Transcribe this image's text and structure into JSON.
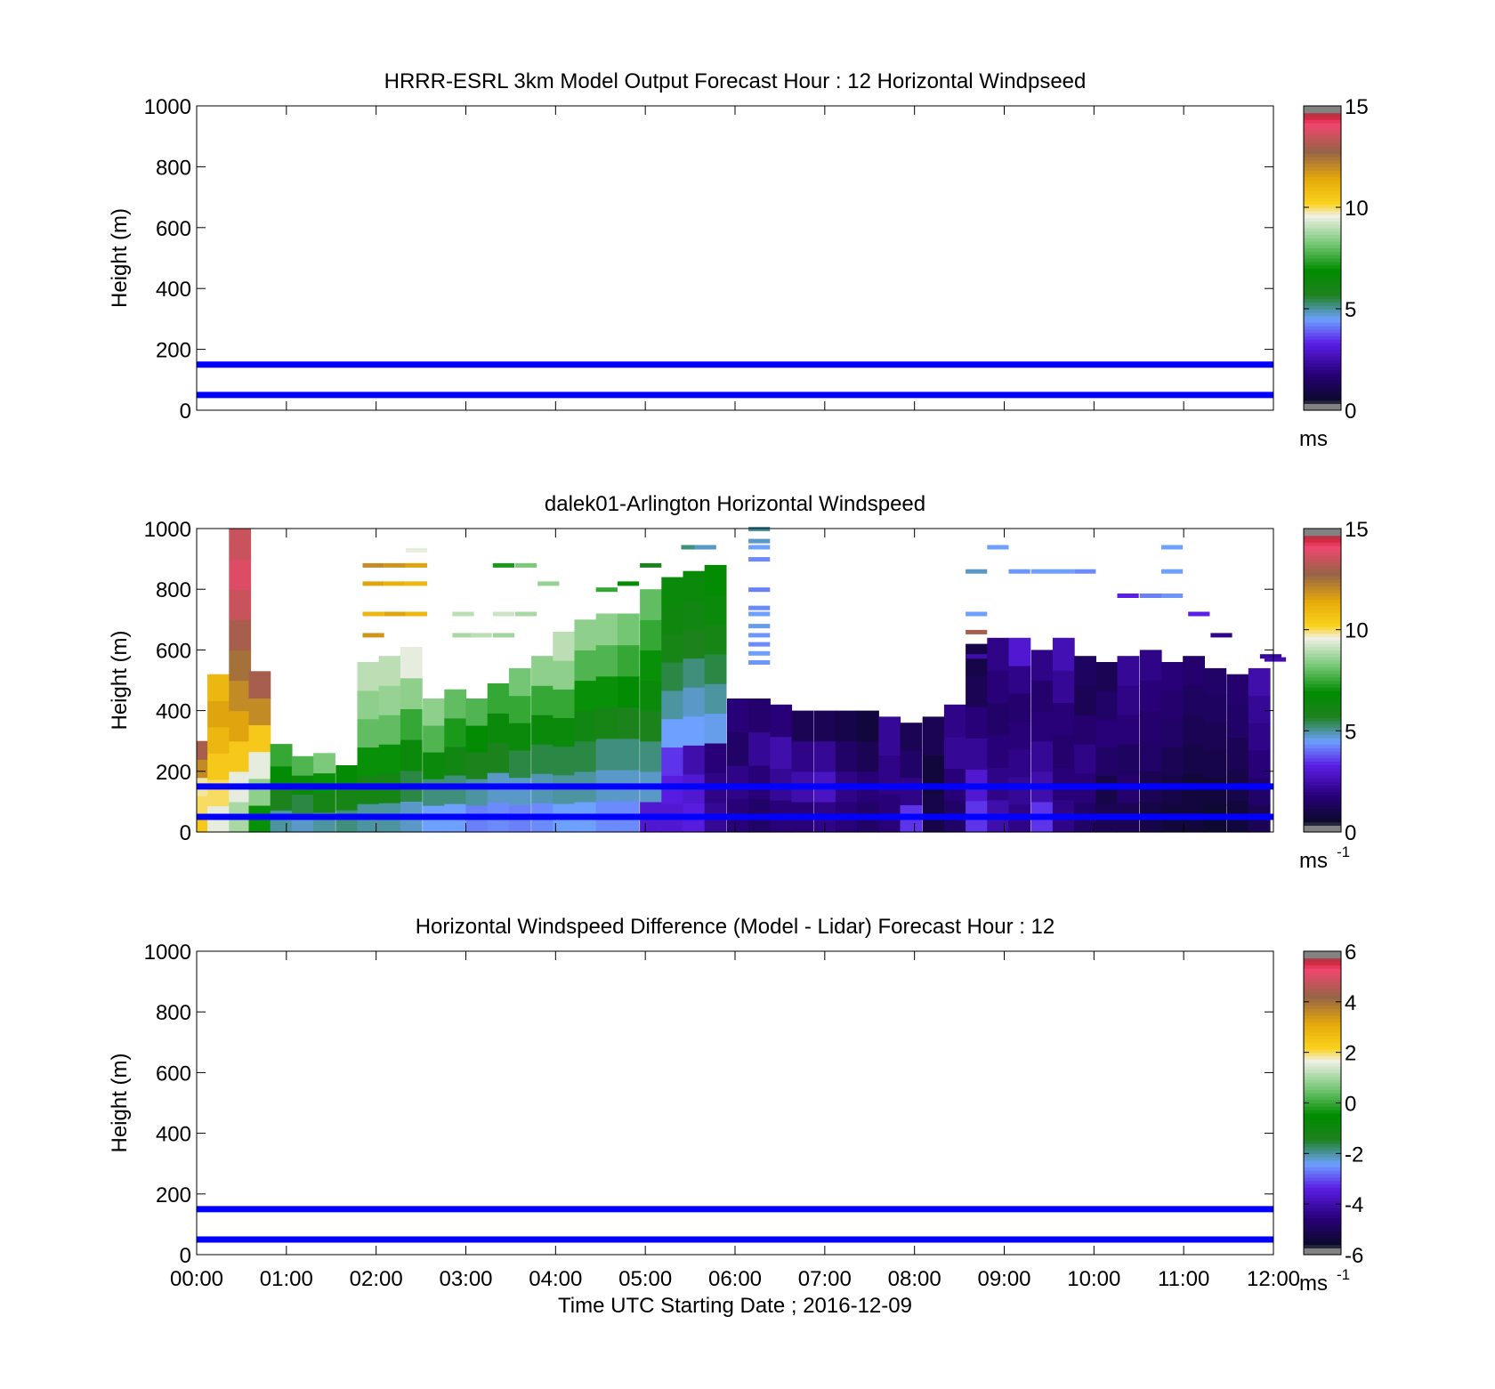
{
  "figure": {
    "xlabel": "Time UTC  Starting Date ; 2016-12-09",
    "x_ticks": [
      "00:00",
      "01:00",
      "02:00",
      "03:00",
      "04:00",
      "05:00",
      "06:00",
      "07:00",
      "08:00",
      "09:00",
      "10:00",
      "11:00",
      "12:00"
    ]
  },
  "chart_data": [
    {
      "type": "heatmap",
      "title": "HRRR-ESRL 3km Model Output   Forecast Hour : 12 Horizontal Windpseed",
      "ylabel": "Height (m)",
      "xlim": [
        0,
        12
      ],
      "ylim": [
        0,
        1000
      ],
      "y_ticks": [
        0,
        200,
        400,
        600,
        800,
        1000
      ],
      "reference_lines_m": [
        150,
        50
      ],
      "reference_line_color": "#0000ff",
      "colorbar": {
        "min": 0,
        "max": 15,
        "ticks": [
          0,
          5,
          10,
          15
        ],
        "unit": "ms",
        "unit_sup": ""
      },
      "cells": []
    },
    {
      "type": "heatmap",
      "title": "dalek01-Arlington  Horizontal Windspeed",
      "ylabel": "Height (m)",
      "xlim": [
        0,
        12
      ],
      "ylim": [
        0,
        1000
      ],
      "y_ticks": [
        0,
        200,
        400,
        600,
        800,
        1000
      ],
      "reference_lines_m": [
        150,
        50
      ],
      "reference_line_color": "#0000ff",
      "colorbar": {
        "min": 0,
        "max": 15,
        "ticks": [
          0,
          5,
          10,
          15
        ],
        "unit": "ms",
        "unit_sup": "-1"
      },
      "columns": [
        {
          "t": 0.0,
          "top": 300,
          "v": [
            10.5,
            10.0,
            9.8,
            12.0,
            13.0
          ]
        },
        {
          "t": 0.12,
          "top": 520,
          "v": [
            9.5,
            10.0,
            10.5,
            11.0,
            11.5,
            11.0
          ]
        },
        {
          "t": 0.36,
          "top": 1000,
          "v": [
            8.8,
            9.5,
            10.5,
            11.5,
            12.0,
            12.5,
            13.0,
            13.5,
            13.8,
            13.5
          ]
        },
        {
          "t": 0.58,
          "top": 530,
          "v": [
            7.0,
            8.5,
            9.5,
            10.5,
            12.0,
            13.0
          ]
        },
        {
          "t": 0.82,
          "top": 290,
          "v": [
            5.0,
            5.8,
            6.8,
            7.5
          ]
        },
        {
          "t": 1.06,
          "top": 250,
          "v": [
            4.8,
            5.5,
            6.5,
            7.8
          ]
        },
        {
          "t": 1.3,
          "top": 260,
          "v": [
            5.0,
            6.0,
            7.0,
            8.3
          ]
        },
        {
          "t": 1.55,
          "top": 220,
          "v": [
            5.2,
            6.0,
            6.8
          ]
        },
        {
          "t": 1.79,
          "top": 560,
          "v": [
            5.0,
            6.0,
            7.0,
            8.0,
            8.5,
            9.0
          ]
        },
        {
          "t": 2.03,
          "top": 580,
          "v": [
            5.0,
            6.0,
            7.0,
            8.0,
            8.6,
            9.0
          ]
        },
        {
          "t": 2.27,
          "top": 610,
          "v": [
            4.8,
            5.5,
            6.5,
            7.5,
            8.5,
            9.5
          ]
        },
        {
          "t": 2.52,
          "top": 440,
          "v": [
            4.5,
            5.2,
            6.5,
            7.8,
            8.5
          ]
        },
        {
          "t": 2.76,
          "top": 470,
          "v": [
            4.5,
            5.2,
            6.2,
            7.2,
            8.0
          ]
        },
        {
          "t": 3.0,
          "top": 440,
          "v": [
            4.2,
            5.0,
            5.8,
            6.8,
            7.8
          ]
        },
        {
          "t": 3.24,
          "top": 490,
          "v": [
            4.3,
            4.8,
            5.8,
            6.5,
            7.5
          ]
        },
        {
          "t": 3.48,
          "top": 540,
          "v": [
            4.2,
            4.8,
            5.5,
            6.5,
            7.5,
            8.2
          ]
        },
        {
          "t": 3.73,
          "top": 580,
          "v": [
            4.3,
            4.9,
            5.5,
            6.5,
            7.5,
            8.5
          ]
        },
        {
          "t": 3.97,
          "top": 660,
          "v": [
            4.5,
            5.0,
            5.5,
            6.5,
            7.5,
            8.5,
            9.0
          ]
        },
        {
          "t": 4.21,
          "top": 700,
          "v": [
            4.5,
            5.0,
            5.5,
            6.2,
            7.0,
            7.8,
            8.5
          ]
        },
        {
          "t": 4.45,
          "top": 720,
          "v": [
            4.3,
            4.8,
            5.2,
            6.0,
            7.0,
            7.8,
            8.5
          ]
        },
        {
          "t": 4.69,
          "top": 720,
          "v": [
            4.3,
            4.8,
            5.2,
            5.8,
            6.8,
            7.5,
            8.2
          ]
        },
        {
          "t": 4.94,
          "top": 800,
          "v": [
            3.0,
            4.8,
            5.2,
            5.8,
            6.5,
            7.0,
            7.5,
            8.0
          ]
        },
        {
          "t": 5.18,
          "top": 840,
          "v": [
            3.0,
            3.2,
            3.5,
            4.5,
            5.0,
            5.5,
            6.0,
            6.3,
            6.5
          ]
        },
        {
          "t": 5.42,
          "top": 860,
          "v": [
            3.2,
            3.0,
            2.5,
            4.5,
            4.8,
            5.2,
            5.8,
            6.2,
            6.5
          ]
        },
        {
          "t": 5.66,
          "top": 880,
          "v": [
            2.2,
            2.0,
            1.8,
            4.6,
            5.0,
            5.5,
            6.0,
            6.5,
            6.8
          ]
        },
        {
          "t": 5.91,
          "top": 440,
          "v": [
            1.8,
            2.0,
            1.5,
            1.8
          ]
        },
        {
          "t": 6.15,
          "top": 440,
          "v": [
            1.5,
            1.8,
            2.2,
            1.6
          ]
        },
        {
          "t": 6.39,
          "top": 420,
          "v": [
            1.8,
            2.2,
            2.5,
            1.8
          ]
        },
        {
          "t": 6.63,
          "top": 400,
          "v": [
            1.8,
            2.5,
            2.0,
            1.2
          ]
        },
        {
          "t": 6.88,
          "top": 400,
          "v": [
            2.0,
            2.8,
            2.2,
            1.2
          ]
        },
        {
          "t": 7.12,
          "top": 400,
          "v": [
            1.8,
            2.0,
            1.5,
            1.0
          ]
        },
        {
          "t": 7.36,
          "top": 400,
          "v": [
            1.5,
            1.8,
            1.2,
            0.8
          ]
        },
        {
          "t": 7.6,
          "top": 380,
          "v": [
            1.8,
            2.0,
            2.2
          ]
        },
        {
          "t": 7.84,
          "top": 360,
          "v": [
            3.5,
            2.0,
            1.5,
            1.2
          ]
        },
        {
          "t": 8.09,
          "top": 380,
          "v": [
            1.0,
            0.8,
            1.2
          ]
        },
        {
          "t": 8.33,
          "top": 420,
          "v": [
            1.5,
            1.8,
            2.2,
            2.0
          ]
        },
        {
          "t": 8.57,
          "top": 620,
          "v": [
            3.5,
            3.0,
            2.2,
            1.8,
            1.2,
            1.0
          ]
        },
        {
          "t": 8.81,
          "top": 640,
          "v": [
            2.5,
            2.0,
            1.8,
            1.5,
            1.8,
            2.0
          ]
        },
        {
          "t": 9.05,
          "top": 640,
          "v": [
            2.0,
            2.2,
            2.0,
            1.8,
            1.6,
            2.0,
            3.0
          ]
        },
        {
          "t": 9.3,
          "top": 600,
          "v": [
            3.5,
            2.5,
            2.2,
            1.8,
            1.6,
            2.0
          ]
        },
        {
          "t": 9.54,
          "top": 640,
          "v": [
            2.0,
            1.8,
            1.6,
            1.8,
            2.2,
            2.6
          ]
        },
        {
          "t": 9.78,
          "top": 580,
          "v": [
            1.5,
            1.8,
            2.0,
            1.6,
            1.2,
            1.4
          ]
        },
        {
          "t": 10.02,
          "top": 560,
          "v": [
            1.2,
            1.0,
            1.5,
            1.8,
            1.5,
            1.2
          ]
        },
        {
          "t": 10.26,
          "top": 580,
          "v": [
            1.2,
            1.6,
            1.4,
            1.8,
            2.0,
            2.2
          ]
        },
        {
          "t": 10.51,
          "top": 600,
          "v": [
            1.0,
            1.2,
            1.5,
            1.6,
            1.8,
            2.0
          ]
        },
        {
          "t": 10.75,
          "top": 560,
          "v": [
            0.8,
            1.0,
            1.2,
            1.5,
            1.6,
            1.8
          ]
        },
        {
          "t": 10.99,
          "top": 580,
          "v": [
            0.8,
            0.8,
            1.0,
            1.2,
            1.4,
            1.6
          ]
        },
        {
          "t": 11.23,
          "top": 540,
          "v": [
            0.6,
            0.8,
            1.0,
            1.2,
            1.4,
            1.5
          ]
        },
        {
          "t": 11.48,
          "top": 520,
          "v": [
            0.8,
            1.0,
            1.2,
            1.5,
            1.6
          ]
        },
        {
          "t": 11.72,
          "top": 540,
          "v": [
            1.2,
            1.5,
            1.8,
            2.0,
            2.2,
            2.5
          ]
        }
      ],
      "fragments": [
        {
          "t": 1.85,
          "h": 880,
          "v": 12.0
        },
        {
          "t": 2.09,
          "h": 880,
          "v": 11.8
        },
        {
          "t": 2.33,
          "h": 880,
          "v": 11.5
        },
        {
          "t": 1.85,
          "h": 820,
          "v": 11.5
        },
        {
          "t": 2.09,
          "h": 820,
          "v": 11.2
        },
        {
          "t": 2.33,
          "h": 820,
          "v": 11.0
        },
        {
          "t": 1.85,
          "h": 720,
          "v": 11.0
        },
        {
          "t": 2.09,
          "h": 720,
          "v": 11.5
        },
        {
          "t": 2.33,
          "h": 720,
          "v": 11.0
        },
        {
          "t": 1.85,
          "h": 650,
          "v": 11.8
        },
        {
          "t": 2.33,
          "h": 930,
          "v": 9.5
        },
        {
          "t": 3.3,
          "h": 880,
          "v": 7.2
        },
        {
          "t": 3.55,
          "h": 880,
          "v": 8.3
        },
        {
          "t": 3.8,
          "h": 820,
          "v": 8.6
        },
        {
          "t": 2.85,
          "h": 720,
          "v": 9.0
        },
        {
          "t": 3.3,
          "h": 720,
          "v": 9.2
        },
        {
          "t": 3.55,
          "h": 720,
          "v": 8.8
        },
        {
          "t": 2.85,
          "h": 650,
          "v": 8.8
        },
        {
          "t": 3.05,
          "h": 650,
          "v": 9.0
        },
        {
          "t": 3.3,
          "h": 650,
          "v": 8.7
        },
        {
          "t": 4.45,
          "h": 800,
          "v": 7.5
        },
        {
          "t": 4.69,
          "h": 820,
          "v": 6.8
        },
        {
          "t": 4.94,
          "h": 880,
          "v": 5.8
        },
        {
          "t": 5.4,
          "h": 940,
          "v": 5.2
        },
        {
          "t": 5.55,
          "h": 940,
          "v": 4.8
        },
        {
          "t": 6.15,
          "h": 1000,
          "v": 5.0
        },
        {
          "t": 6.15,
          "h": 960,
          "v": 4.8
        },
        {
          "t": 6.15,
          "h": 940,
          "v": 4.5
        },
        {
          "t": 6.15,
          "h": 900,
          "v": 4.3
        },
        {
          "t": 6.15,
          "h": 800,
          "v": 4.2
        },
        {
          "t": 6.15,
          "h": 740,
          "v": 4.3
        },
        {
          "t": 6.15,
          "h": 720,
          "v": 4.5
        },
        {
          "t": 6.15,
          "h": 680,
          "v": 4.6
        },
        {
          "t": 6.15,
          "h": 650,
          "v": 4.4
        },
        {
          "t": 6.15,
          "h": 620,
          "v": 4.3
        },
        {
          "t": 6.15,
          "h": 590,
          "v": 4.5
        },
        {
          "t": 6.15,
          "h": 560,
          "v": 4.4
        },
        {
          "t": 8.81,
          "h": 940,
          "v": 4.5
        },
        {
          "t": 9.05,
          "h": 860,
          "v": 4.4
        },
        {
          "t": 9.3,
          "h": 860,
          "v": 4.5
        },
        {
          "t": 9.54,
          "h": 860,
          "v": 4.5
        },
        {
          "t": 9.78,
          "h": 860,
          "v": 4.3
        },
        {
          "t": 8.57,
          "h": 860,
          "v": 4.8
        },
        {
          "t": 8.57,
          "h": 720,
          "v": 4.5
        },
        {
          "t": 8.57,
          "h": 660,
          "v": 13.0
        },
        {
          "t": 8.57,
          "h": 580,
          "v": 2.5
        },
        {
          "t": 10.75,
          "h": 940,
          "v": 4.5
        },
        {
          "t": 10.75,
          "h": 860,
          "v": 4.5
        },
        {
          "t": 10.75,
          "h": 780,
          "v": 4.4
        },
        {
          "t": 10.26,
          "h": 780,
          "v": 3.3
        },
        {
          "t": 10.51,
          "h": 780,
          "v": 4.2
        },
        {
          "t": 11.05,
          "h": 720,
          "v": 3.3
        },
        {
          "t": 11.3,
          "h": 650,
          "v": 2.0
        },
        {
          "t": 11.85,
          "h": 580,
          "v": 2.2
        },
        {
          "t": 11.9,
          "h": 570,
          "v": 2.5
        }
      ]
    },
    {
      "type": "heatmap",
      "title": "Horizontal Windspeed Difference (Model - Lidar) Forecast Hour : 12",
      "ylabel": "Height (m)",
      "xlim": [
        0,
        12
      ],
      "ylim": [
        0,
        1000
      ],
      "y_ticks": [
        0,
        200,
        400,
        600,
        800,
        1000
      ],
      "reference_lines_m": [
        150,
        50
      ],
      "reference_line_color": "#0000ff",
      "colorbar": {
        "min": -6,
        "max": 6,
        "ticks": [
          -6,
          -4,
          -2,
          0,
          2,
          4,
          6
        ],
        "unit": "ms",
        "unit_sup": "-1"
      },
      "cells": []
    }
  ]
}
